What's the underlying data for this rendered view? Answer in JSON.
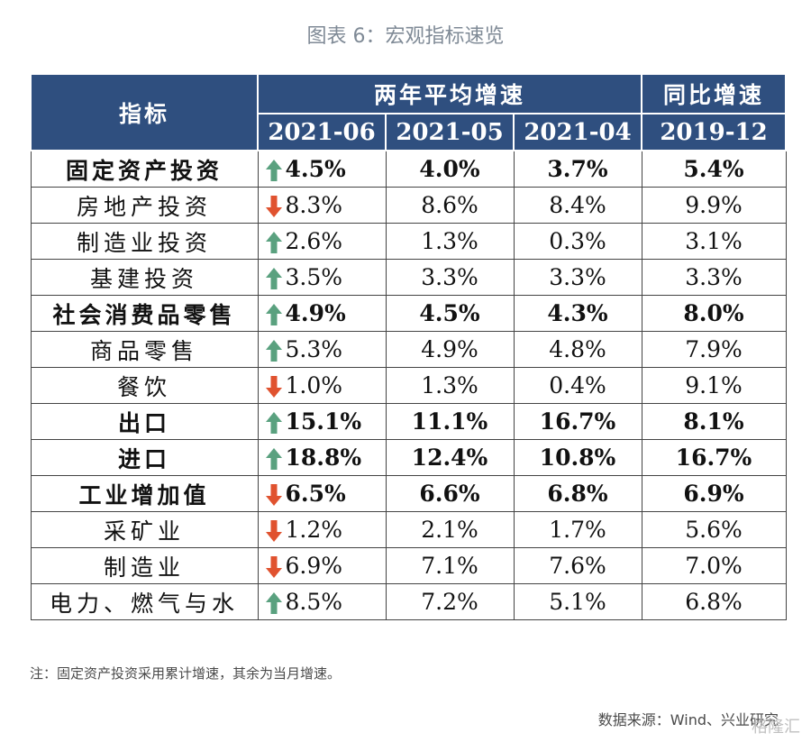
{
  "caption": "图表 6：宏观指标速览",
  "header": {
    "indicator": "指标",
    "group_avg": "两年平均增速",
    "group_yoy": "同比增速",
    "periods": [
      "2021-06",
      "2021-05",
      "2021-04",
      "2019-12"
    ]
  },
  "colors": {
    "header_bg": "#2f4f7f",
    "up_arrow": "#5aa17f",
    "down_arrow": "#e0522f"
  },
  "rows": [
    {
      "name": "固定资产投资",
      "bold": true,
      "trend": "up",
      "values": [
        "4.5%",
        "4.0%",
        "3.7%",
        "5.4%"
      ]
    },
    {
      "name": "房地产投资",
      "bold": false,
      "trend": "down",
      "values": [
        "8.3%",
        "8.6%",
        "8.4%",
        "9.9%"
      ]
    },
    {
      "name": "制造业投资",
      "bold": false,
      "trend": "up",
      "values": [
        "2.6%",
        "1.3%",
        "0.3%",
        "3.1%"
      ]
    },
    {
      "name": "基建投资",
      "bold": false,
      "trend": "up",
      "values": [
        "3.5%",
        "3.3%",
        "3.3%",
        "3.3%"
      ]
    },
    {
      "name": "社会消费品零售",
      "bold": true,
      "trend": "up",
      "values": [
        "4.9%",
        "4.5%",
        "4.3%",
        "8.0%"
      ]
    },
    {
      "name": "商品零售",
      "bold": false,
      "trend": "up",
      "values": [
        "5.3%",
        "4.9%",
        "4.8%",
        "7.9%"
      ]
    },
    {
      "name": "餐饮",
      "bold": false,
      "trend": "down",
      "values": [
        "1.0%",
        "1.3%",
        "0.4%",
        "9.1%"
      ]
    },
    {
      "name": "出口",
      "bold": true,
      "trend": "up",
      "values": [
        "15.1%",
        "11.1%",
        "16.7%",
        "8.1%"
      ]
    },
    {
      "name": "进口",
      "bold": true,
      "trend": "up",
      "values": [
        "18.8%",
        "12.4%",
        "10.8%",
        "16.7%"
      ]
    },
    {
      "name": "工业增加值",
      "bold": true,
      "trend": "down",
      "values": [
        "6.5%",
        "6.6%",
        "6.8%",
        "6.9%"
      ]
    },
    {
      "name": "采矿业",
      "bold": false,
      "trend": "down",
      "values": [
        "1.2%",
        "2.1%",
        "1.7%",
        "5.6%"
      ]
    },
    {
      "name": "制造业",
      "bold": false,
      "trend": "down",
      "values": [
        "6.9%",
        "7.1%",
        "7.6%",
        "7.0%"
      ]
    },
    {
      "name": "电力、燃气与水",
      "bold": false,
      "trend": "up",
      "values": [
        "8.5%",
        "7.2%",
        "5.1%",
        "6.8%"
      ]
    }
  ],
  "note": "注：固定资产投资采用累计增速，其余为当月增速。",
  "source": "数据来源：Wind、兴业研究",
  "watermark": "格隆汇"
}
